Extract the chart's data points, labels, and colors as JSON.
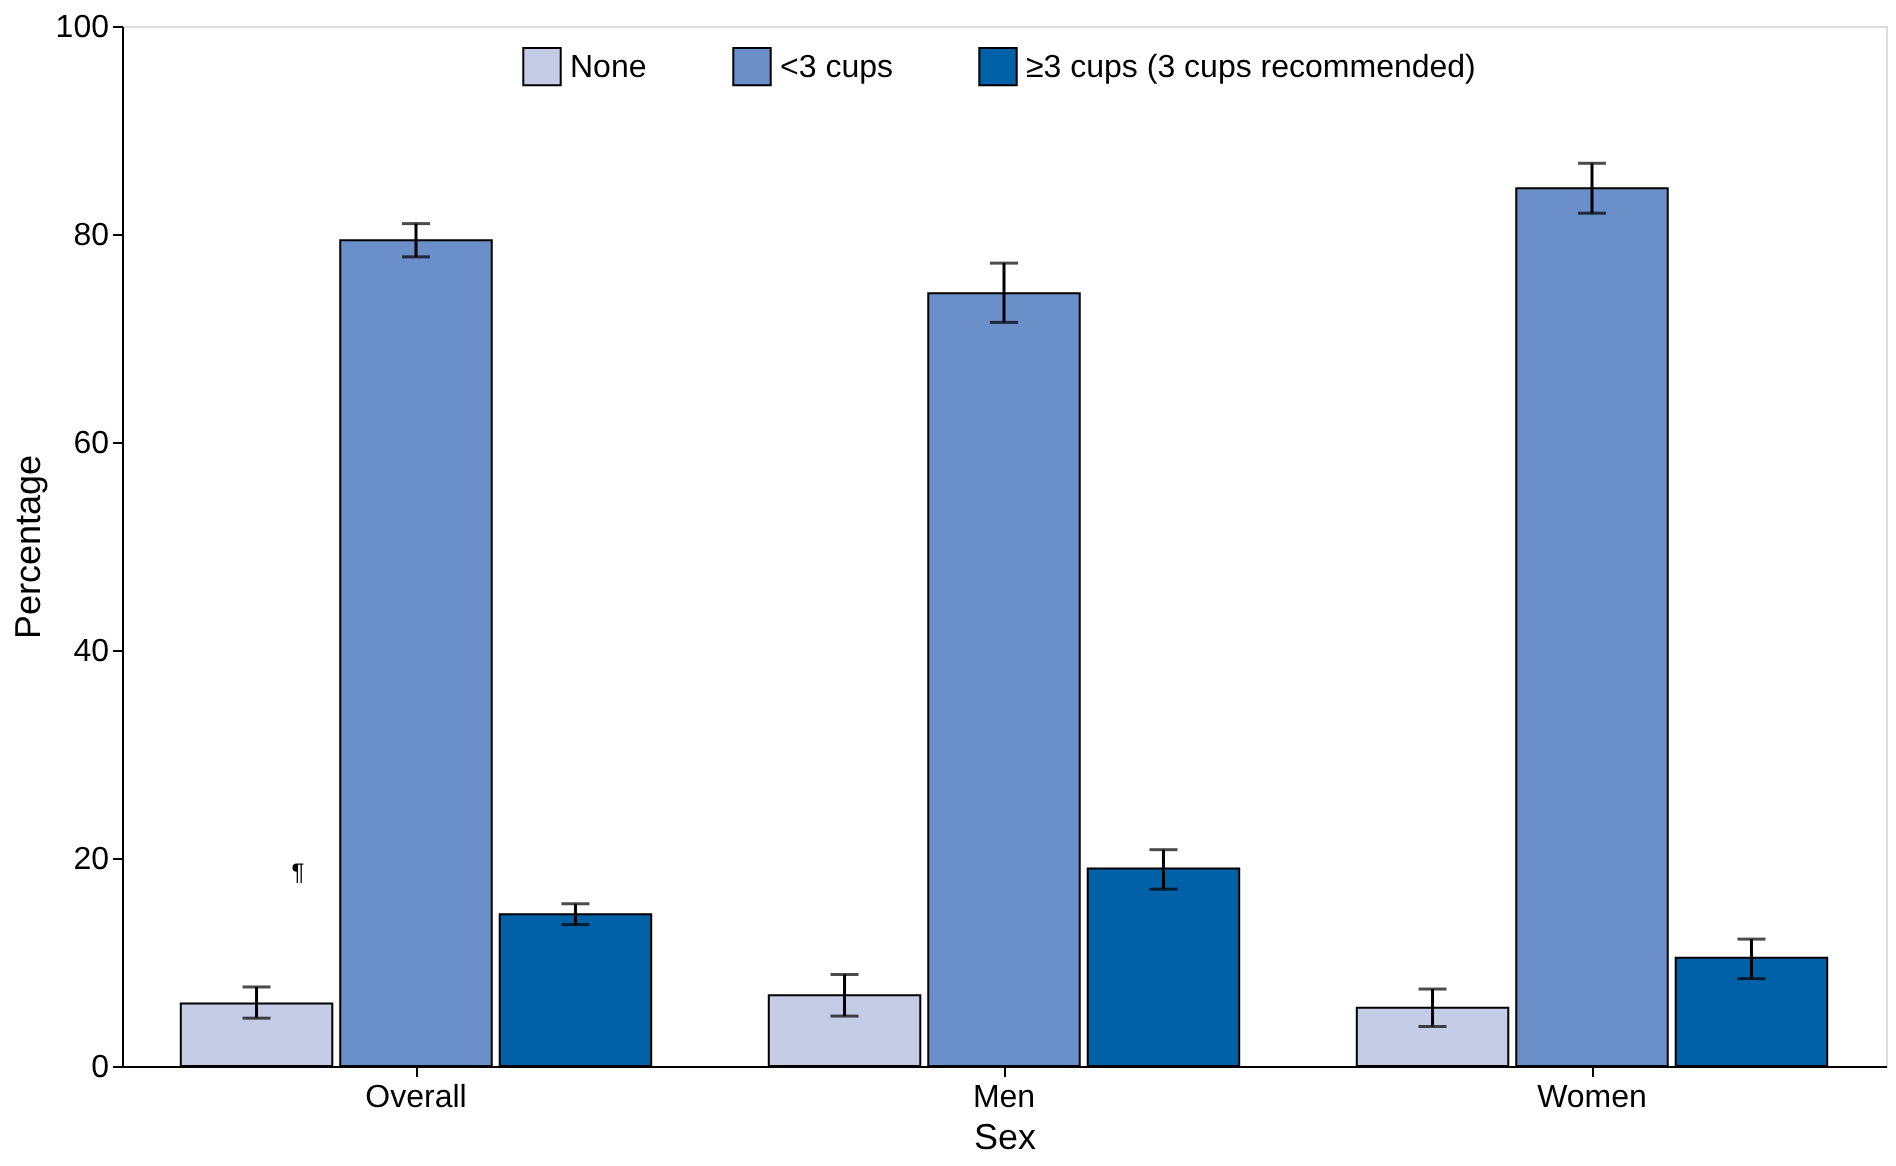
{
  "chart_data": {
    "type": "bar",
    "xlabel": "Sex",
    "ylabel": "Percentage",
    "categories": [
      "Overall",
      "Men",
      "Women"
    ],
    "series": [
      {
        "name": "None",
        "color": "#c5cde6",
        "values": [
          6,
          6.8,
          5.6
        ],
        "errors": [
          [
            4.6,
            7.6
          ],
          [
            4.8,
            8.8
          ],
          [
            3.8,
            7.4
          ]
        ]
      },
      {
        "name": "<3 cups",
        "color": "#6a8fc9",
        "values": [
          79.4,
          74.3,
          84.4
        ],
        "errors": [
          [
            77.8,
            81
          ],
          [
            71.5,
            77.2
          ],
          [
            82,
            86.8
          ]
        ]
      },
      {
        "name": "≥3 cups (3 cups recommended)",
        "color": "#0060a8",
        "values": [
          14.6,
          19,
          10.4
        ],
        "errors": [
          [
            13.6,
            15.6
          ],
          [
            17,
            20.8
          ],
          [
            8.4,
            12.2
          ]
        ]
      }
    ],
    "ylim": [
      0,
      100
    ],
    "yticks": [
      0,
      20,
      40,
      60,
      80,
      100
    ],
    "grid": false,
    "legend": "top",
    "annotations": [
      "¶"
    ]
  }
}
